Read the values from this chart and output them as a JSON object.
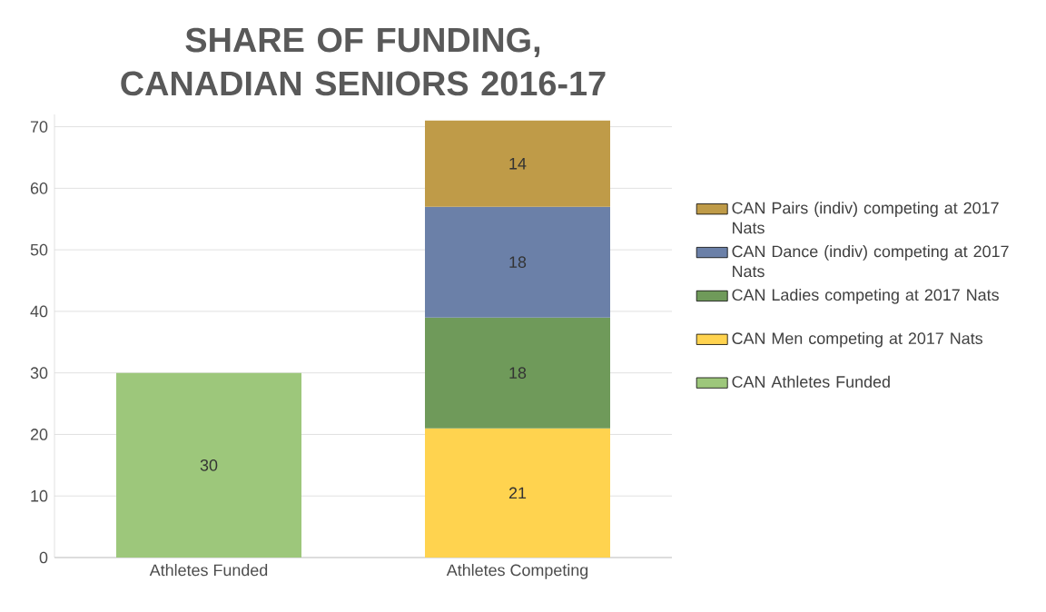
{
  "chart_data": {
    "type": "bar",
    "title": "SHARE OF FUNDING, CANADIAN SENIORS 2016-17",
    "categories": [
      "Athletes Funded",
      "Athletes Competing"
    ],
    "stacked": true,
    "series": [
      {
        "name": "CAN Athletes Funded",
        "color": "#9dc77b",
        "values": [
          30,
          null
        ]
      },
      {
        "name": "CAN Men competing at 2017 Nats",
        "color": "#ffd34f",
        "values": [
          null,
          21
        ]
      },
      {
        "name": "CAN Ladies competing at 2017 Nats",
        "color": "#6f9a5a",
        "values": [
          null,
          18
        ]
      },
      {
        "name": "CAN Dance (indiv) competing at 2017 Nats",
        "color": "#6b80a8",
        "values": [
          null,
          18
        ]
      },
      {
        "name": "CAN Pairs (indiv) competing at 2017 Nats",
        "color": "#bf9b48",
        "values": [
          null,
          14
        ]
      }
    ],
    "ylim": [
      0,
      72
    ],
    "yticks": [
      0,
      10,
      20,
      30,
      40,
      50,
      60,
      70
    ],
    "grid": "y",
    "legend": "right",
    "data_labels": true
  }
}
